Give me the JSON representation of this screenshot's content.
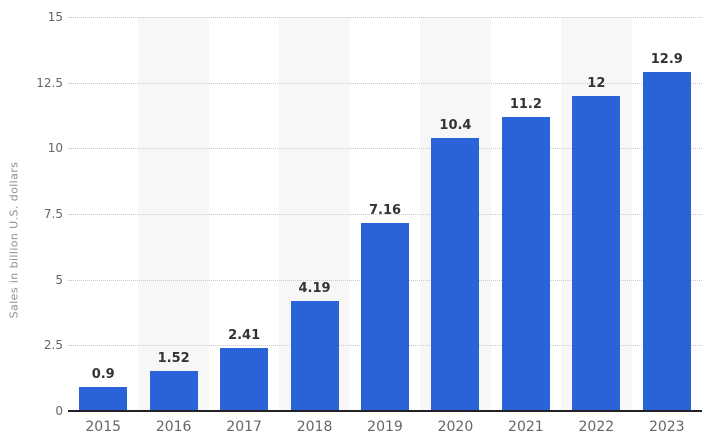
{
  "chart_data": {
    "type": "bar",
    "title": "",
    "categories": [
      "2015",
      "2016",
      "2017",
      "2018",
      "2019",
      "2020",
      "2021",
      "2022",
      "2023"
    ],
    "values": [
      0.9,
      1.52,
      2.41,
      4.19,
      7.16,
      10.4,
      11.2,
      12,
      12.9
    ],
    "value_labels": [
      "0.9",
      "1.52",
      "2.41",
      "4.19",
      "7.16",
      "10.4",
      "11.2",
      "12",
      "12.9"
    ],
    "xlabel": "",
    "ylabel": "Sales in billion U.S. dollars",
    "ylim": [
      0,
      15
    ],
    "yticks": [
      0,
      2.5,
      5,
      7.5,
      10,
      12.5,
      15
    ],
    "ytick_labels": [
      "0",
      "2.5",
      "5",
      "7.5",
      "10",
      "12.5",
      "15"
    ],
    "grid": "horizontal-dotted",
    "legend_position": "none",
    "shaded_band_categories": [
      "2016",
      "2018",
      "2020",
      "2022"
    ],
    "colors": {
      "bar": "#2a63d8",
      "band": "#f7f7f7",
      "gridline": "#c9c9c9",
      "baseline": "#222222",
      "tick_text": "#666666",
      "value_text": "#333333",
      "axis_title_text": "#8f8f8f",
      "background": "#ffffff"
    }
  }
}
